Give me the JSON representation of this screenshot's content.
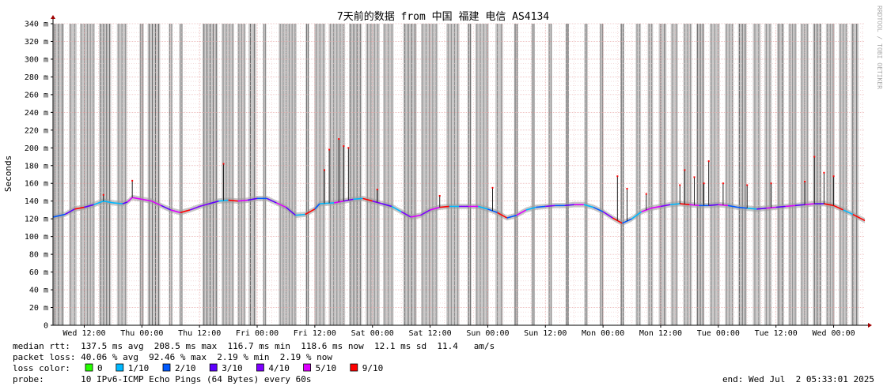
{
  "chart_data": {
    "type": "line",
    "title": "7天前的数据 from 中国 福建 电信 AS4134",
    "ylabel": "Seconds",
    "ylim": [
      0,
      0.34
    ],
    "y_ticks": [
      "0",
      "20 m",
      "40 m",
      "60 m",
      "80 m",
      "100 m",
      "120 m",
      "140 m",
      "160 m",
      "180 m",
      "200 m",
      "220 m",
      "240 m",
      "260 m",
      "280 m",
      "300 m",
      "320 m",
      "340 m"
    ],
    "x_ticks": [
      "Wed 12:00",
      "Thu 00:00",
      "Thu 12:00",
      "Fri 00:00",
      "Fri 12:00",
      "Sat 00:00",
      "Sat 12:00",
      "Sun 00:00",
      "Sun 12:00",
      "Mon 00:00",
      "Mon 12:00",
      "Tue 00:00",
      "Tue 12:00",
      "Wed 00:00"
    ],
    "x_hours": [
      0,
      12,
      24,
      36,
      48,
      60,
      72,
      84,
      96,
      108,
      120,
      132,
      144,
      156
    ],
    "xlim_hours": [
      -6.5,
      162.5
    ],
    "median_rtt_ms": [
      [
        -6.5,
        122
      ],
      [
        -4,
        125
      ],
      [
        -2,
        131
      ],
      [
        0,
        133
      ],
      [
        2,
        136
      ],
      [
        4,
        140
      ],
      [
        6,
        138
      ],
      [
        8,
        137
      ],
      [
        9,
        139
      ],
      [
        10,
        144
      ],
      [
        12,
        142
      ],
      [
        14,
        140
      ],
      [
        16,
        135
      ],
      [
        18,
        130
      ],
      [
        20,
        127
      ],
      [
        22,
        130
      ],
      [
        24,
        134
      ],
      [
        26,
        137
      ],
      [
        28,
        140
      ],
      [
        30,
        141
      ],
      [
        32,
        140
      ],
      [
        34,
        141
      ],
      [
        36,
        143
      ],
      [
        38,
        143
      ],
      [
        40,
        138
      ],
      [
        42,
        133
      ],
      [
        44,
        124
      ],
      [
        46,
        125
      ],
      [
        48,
        131
      ],
      [
        49,
        137
      ],
      [
        52,
        138
      ],
      [
        54,
        140
      ],
      [
        56,
        142
      ],
      [
        58,
        143
      ],
      [
        60,
        140
      ],
      [
        62,
        137
      ],
      [
        64,
        134
      ],
      [
        66,
        128
      ],
      [
        68,
        122
      ],
      [
        70,
        124
      ],
      [
        72,
        130
      ],
      [
        74,
        133
      ],
      [
        76,
        134
      ],
      [
        78,
        134
      ],
      [
        80,
        134
      ],
      [
        82,
        134
      ],
      [
        84,
        131
      ],
      [
        86,
        127
      ],
      [
        88,
        121
      ],
      [
        90,
        124
      ],
      [
        92,
        130
      ],
      [
        94,
        133
      ],
      [
        96,
        134
      ],
      [
        98,
        135
      ],
      [
        100,
        135
      ],
      [
        102,
        136
      ],
      [
        104,
        136
      ],
      [
        106,
        133
      ],
      [
        108,
        128
      ],
      [
        110,
        121
      ],
      [
        112,
        115
      ],
      [
        114,
        120
      ],
      [
        116,
        128
      ],
      [
        118,
        132
      ],
      [
        120,
        134
      ],
      [
        122,
        136
      ],
      [
        124,
        137
      ],
      [
        126,
        136
      ],
      [
        128,
        135
      ],
      [
        130,
        135
      ],
      [
        132,
        136
      ],
      [
        134,
        135
      ],
      [
        136,
        133
      ],
      [
        138,
        132
      ],
      [
        140,
        131
      ],
      [
        142,
        132
      ],
      [
        144,
        133
      ],
      [
        146,
        134
      ],
      [
        148,
        135
      ],
      [
        150,
        136
      ],
      [
        152,
        137
      ],
      [
        154,
        137
      ],
      [
        156,
        135
      ],
      [
        158,
        130
      ],
      [
        160,
        125
      ],
      [
        162.5,
        118
      ]
    ],
    "rtt_spikes_ms": [
      [
        4,
        147
      ],
      [
        10,
        163
      ],
      [
        29,
        182
      ],
      [
        50,
        175
      ],
      [
        51,
        198
      ],
      [
        53,
        210
      ],
      [
        54,
        202
      ],
      [
        55,
        200
      ],
      [
        61,
        153
      ],
      [
        74,
        146
      ],
      [
        85,
        155
      ],
      [
        111,
        168
      ],
      [
        113,
        154
      ],
      [
        117,
        148
      ],
      [
        124,
        158
      ],
      [
        125,
        175
      ],
      [
        127,
        167
      ],
      [
        129,
        160
      ],
      [
        130,
        185
      ],
      [
        133,
        160
      ],
      [
        138,
        158
      ],
      [
        143,
        160
      ],
      [
        150,
        162
      ],
      [
        152,
        190
      ],
      [
        154,
        172
      ],
      [
        156,
        168
      ]
    ],
    "loss_bands_hours": [
      [
        -6.5,
        -4.2
      ],
      [
        -3.2,
        -1.6
      ],
      [
        -0.9,
        2.2
      ],
      [
        3.1,
        5.6
      ],
      [
        6.8,
        8.9
      ],
      [
        11.5,
        12.4
      ],
      [
        13.2,
        15.8
      ],
      [
        17.6,
        18.4
      ],
      [
        19.8,
        20.5
      ],
      [
        24.6,
        27.8
      ],
      [
        28.6,
        31.2
      ],
      [
        31.9,
        33.6
      ],
      [
        34.2,
        35.8
      ],
      [
        37.2,
        37.9
      ],
      [
        40.5,
        44.2
      ],
      [
        46.1,
        46.8
      ],
      [
        47.9,
        50.2
      ],
      [
        50.9,
        54.3
      ],
      [
        55.1,
        57.8
      ],
      [
        58.6,
        61.5
      ],
      [
        62.2,
        64.4
      ],
      [
        66.4,
        69.2
      ],
      [
        70.1,
        73.6
      ],
      [
        75.4,
        78.1
      ],
      [
        79.8,
        80.6
      ],
      [
        81.4,
        84.2
      ],
      [
        85.6,
        87.2
      ],
      [
        89.5,
        90.3
      ],
      [
        93.1,
        93.8
      ],
      [
        96.6,
        97.4
      ],
      [
        100.2,
        100.9
      ],
      [
        104.1,
        104.8
      ],
      [
        107.3,
        108.1
      ],
      [
        111.6,
        112.4
      ],
      [
        114.8,
        115.9
      ],
      [
        117.3,
        118.4
      ],
      [
        119.6,
        121.2
      ],
      [
        122.1,
        123.6
      ],
      [
        124.7,
        126.5
      ],
      [
        127.4,
        129.1
      ],
      [
        130.2,
        132.3
      ],
      [
        133.4,
        135.2
      ],
      [
        136.1,
        137.9
      ],
      [
        139.2,
        140.8
      ],
      [
        141.6,
        143.1
      ],
      [
        144.2,
        145.7
      ],
      [
        146.6,
        148.3
      ],
      [
        149.1,
        150.8
      ],
      [
        151.7,
        153.5
      ],
      [
        154.4,
        156.2
      ],
      [
        157.1,
        158.9
      ],
      [
        159.6,
        161.2
      ]
    ],
    "grid": true,
    "legend_position": "bottom"
  },
  "stats": {
    "median_rtt": "median rtt:  137.5 ms avg  208.5 ms max  116.7 ms min  118.6 ms now  12.1 ms sd  11.4   am/s",
    "packet_loss": "packet loss: 40.06 % avg  92.46 % max  2.19 % min  2.19 % now",
    "loss_color_label": "loss color:",
    "probe": "probe:       10 IPv6-ICMP Echo Pings (64 Bytes) every 60s",
    "end": "end: Wed Jul  2 05:33:01 2025"
  },
  "legend": [
    {
      "label": "0",
      "color": "#26ff00"
    },
    {
      "label": "1/10",
      "color": "#00b8ff"
    },
    {
      "label": "2/10",
      "color": "#0059ff"
    },
    {
      "label": "3/10",
      "color": "#5e00ff"
    },
    {
      "label": "4/10",
      "color": "#7e00ff"
    },
    {
      "label": "5/10",
      "color": "#dd00ff"
    },
    {
      "label": "9/10",
      "color": "#ff0000"
    }
  ],
  "watermark": "RRDTOOL / TOBI OETIKER"
}
